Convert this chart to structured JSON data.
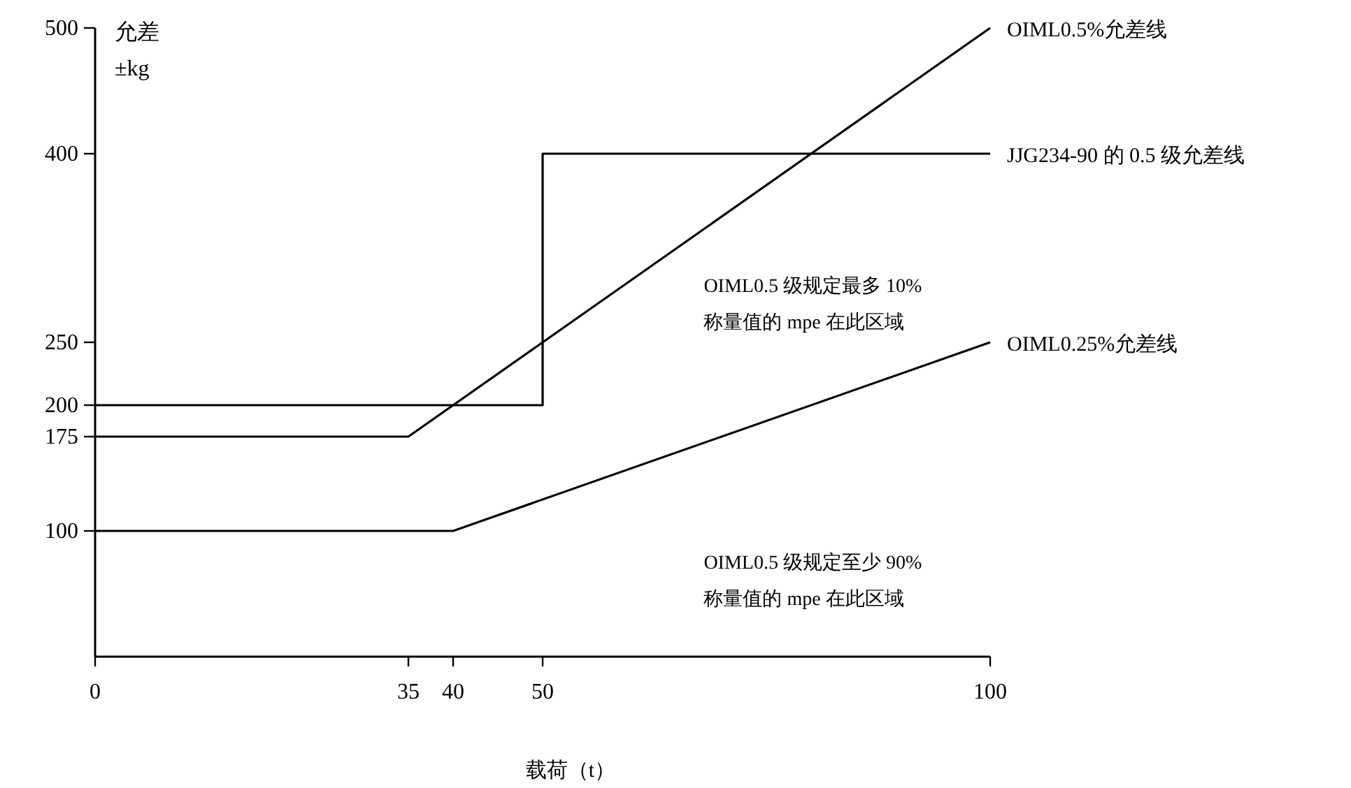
{
  "chart_data": {
    "type": "line",
    "xlabel": "载荷（t）",
    "ylabel": "允差 ±kg",
    "xlim": [
      0,
      100
    ],
    "ylim": [
      0,
      500
    ],
    "xticks": [
      0,
      35,
      40,
      50,
      100
    ],
    "yticks": [
      100,
      175,
      200,
      250,
      400,
      500
    ],
    "grid": false,
    "marker": "none",
    "line_style": "solid",
    "series": [
      {
        "name": "OIML0.5%允差线",
        "color": "#000000",
        "x": [
          0,
          35,
          100
        ],
        "values": [
          175,
          175,
          500
        ]
      },
      {
        "name": "JJG234-90 的 0.5 级允差线",
        "color": "#000000",
        "x": [
          0,
          50,
          50,
          100
        ],
        "values": [
          200,
          200,
          400,
          400
        ]
      },
      {
        "name": "OIML0.25%允差线",
        "color": "#000000",
        "x": [
          0,
          40,
          100
        ],
        "values": [
          100,
          100,
          250
        ]
      }
    ],
    "annotations": [
      "OIML0.5 级规定最多 10%\n称量值的 mpe 在此区域",
      "OIML0.5 级规定至少 90%\n称量值的 mpe 在此区域"
    ]
  }
}
